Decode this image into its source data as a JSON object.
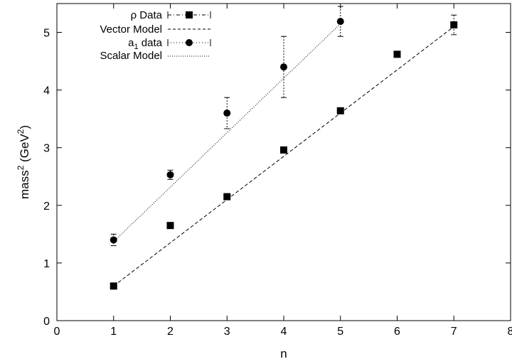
{
  "chart_data": {
    "type": "scatter",
    "xlabel": "n",
    "ylabel": {
      "base": "mass",
      "sup1": "2",
      "paren_open": " (GeV",
      "sup2": "2",
      "paren_close": ")"
    },
    "xlim": [
      0,
      8
    ],
    "ylim": [
      0,
      5.5
    ],
    "xticks": [
      "0",
      "1",
      "2",
      "3",
      "4",
      "5",
      "6",
      "7",
      "8"
    ],
    "yticks": [
      "0",
      "1",
      "2",
      "3",
      "4",
      "5"
    ],
    "grid": false,
    "legend_position": "top-left",
    "series": [
      {
        "name": "ρ Data",
        "kind": "points",
        "marker": "square",
        "x": [
          1,
          2,
          3,
          4,
          5,
          6,
          7
        ],
        "y": [
          0.6,
          1.65,
          2.15,
          2.96,
          3.64,
          4.62,
          5.13
        ],
        "err": [
          0.02,
          0.02,
          0.02,
          0.02,
          0.02,
          0.02,
          0.17
        ]
      },
      {
        "name": "Vector Model",
        "kind": "line",
        "style": "dashed",
        "x": [
          1,
          7
        ],
        "y": [
          0.6,
          5.1
        ]
      },
      {
        "name": "a",
        "name_sub": "1",
        "name_rest": " data",
        "kind": "points",
        "marker": "circle",
        "x": [
          1,
          2,
          3,
          4,
          5
        ],
        "y": [
          1.4,
          2.53,
          3.6,
          4.4,
          5.19
        ],
        "err": [
          0.1,
          0.08,
          0.27,
          0.53,
          0.26
        ]
      },
      {
        "name": "Scalar Model",
        "kind": "line",
        "style": "dotted",
        "x": [
          1,
          5
        ],
        "y": [
          1.37,
          5.15
        ]
      }
    ]
  }
}
